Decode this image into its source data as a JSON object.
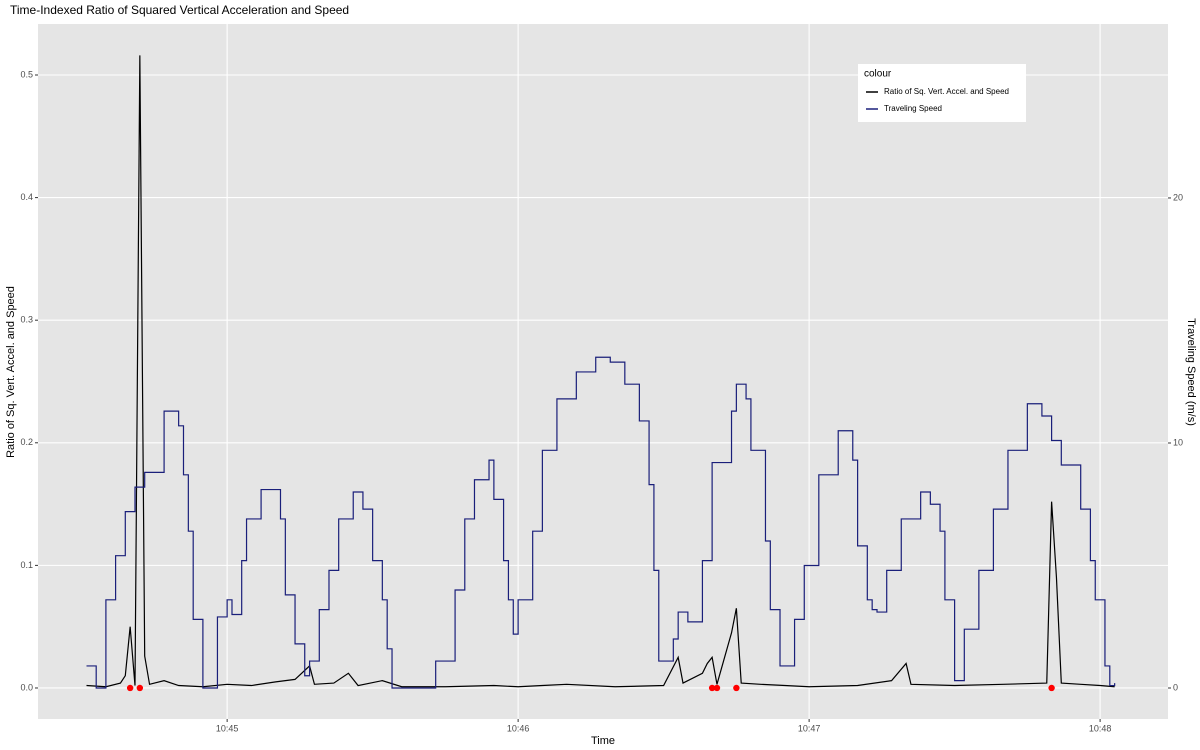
{
  "chart_data": {
    "type": "line",
    "title": "Time-Indexed Ratio of Squared Vertical Acceleration and Speed",
    "x_label": "Time",
    "y_label": "Ratio of Sq. Vert. Accel. and Speed",
    "y2_label": "Traveling Speed (m/s)",
    "legend_title": "colour",
    "legend_position": "top-right",
    "grid": true,
    "xlim": [
      "10:44:21",
      "10:48:14"
    ],
    "xticks": [
      {
        "value": "10:45:00",
        "label": "10:45"
      },
      {
        "value": "10:46:00",
        "label": "10:46"
      },
      {
        "value": "10:47:00",
        "label": "10:47"
      },
      {
        "value": "10:48:00",
        "label": "10:48"
      }
    ],
    "ylim": [
      -0.0253,
      0.5416
    ],
    "yticks": [
      {
        "value": 0,
        "label": "0.0"
      },
      0.1,
      0.2,
      0.3,
      0.4,
      0.5
    ],
    "y2lim": [
      -1.265,
      27.1
    ],
    "y2ticks": [
      0,
      10,
      20
    ],
    "series": [
      {
        "name": "Ratio of Sq. Vert. Accel. and Speed",
        "color": "#000000",
        "axis": "y",
        "step": false,
        "x": [
          "10:44:31",
          "10:44:35",
          "10:44:38",
          "10:44:39",
          "10:44:40",
          "10:44:41",
          "10:44:42",
          "10:44:43",
          "10:44:44",
          "10:44:47",
          "10:44:50",
          "10:44:55",
          "10:45:00",
          "10:45:05",
          "10:45:10",
          "10:45:14",
          "10:45:17",
          "10:45:18",
          "10:45:22",
          "10:45:25",
          "10:45:27",
          "10:45:32",
          "10:45:36",
          "10:45:45",
          "10:45:55",
          "10:46:00",
          "10:46:05",
          "10:46:10",
          "10:46:20",
          "10:46:30",
          "10:46:33",
          "10:46:34",
          "10:46:38",
          "10:46:39",
          "10:46:40",
          "10:46:41",
          "10:46:44",
          "10:46:45",
          "10:46:46",
          "10:46:50",
          "10:46:55",
          "10:47:00",
          "10:47:10",
          "10:47:17",
          "10:47:20",
          "10:47:21",
          "10:47:30",
          "10:47:40",
          "10:47:49",
          "10:47:50",
          "10:47:51",
          "10:47:52",
          "10:47:56",
          "10:48:00",
          "10:48:03"
        ],
        "values": [
          0.002,
          0.001,
          0.004,
          0.01,
          0.05,
          0.002,
          0.516,
          0.026,
          0.003,
          0.006,
          0.002,
          0.001,
          0.003,
          0.002,
          0.005,
          0.007,
          0.018,
          0.003,
          0.004,
          0.012,
          0.002,
          0.006,
          0.001,
          0.001,
          0.002,
          0.001,
          0.002,
          0.003,
          0.001,
          0.002,
          0.025,
          0.004,
          0.012,
          0.02,
          0.025,
          0.003,
          0.045,
          0.065,
          0.004,
          0.003,
          0.002,
          0.001,
          0.002,
          0.006,
          0.02,
          0.003,
          0.002,
          0.003,
          0.004,
          0.152,
          0.09,
          0.004,
          0.003,
          0.002,
          0.001
        ]
      },
      {
        "name": "Traveling Speed",
        "color": "#1a1f7a",
        "axis": "y2",
        "step": true,
        "x": [
          "10:44:31",
          "10:44:33",
          "10:44:35",
          "10:44:37",
          "10:44:39",
          "10:44:41",
          "10:44:43",
          "10:44:47",
          "10:44:49",
          "10:44:50",
          "10:44:51",
          "10:44:52",
          "10:44:53",
          "10:44:55",
          "10:44:56",
          "10:44:57",
          "10:44:58",
          "10:45:00",
          "10:45:01",
          "10:45:03",
          "10:45:04",
          "10:45:07",
          "10:45:09",
          "10:45:11",
          "10:45:12",
          "10:45:14",
          "10:45:16",
          "10:45:17",
          "10:45:19",
          "10:45:21",
          "10:45:23",
          "10:45:26",
          "10:45:28",
          "10:45:30",
          "10:45:32",
          "10:45:33",
          "10:45:34",
          "10:45:42",
          "10:45:43",
          "10:45:47",
          "10:45:49",
          "10:45:51",
          "10:45:54",
          "10:45:55",
          "10:45:57",
          "10:45:58",
          "10:45:59",
          "10:46:00",
          "10:46:03",
          "10:46:05",
          "10:46:08",
          "10:46:12",
          "10:46:16",
          "10:46:19",
          "10:46:22",
          "10:46:25",
          "10:46:27",
          "10:46:28",
          "10:46:29",
          "10:46:32",
          "10:46:33",
          "10:46:35",
          "10:46:38",
          "10:46:40",
          "10:46:44",
          "10:46:45",
          "10:46:47",
          "10:46:48",
          "10:46:51",
          "10:46:52",
          "10:46:54",
          "10:46:57",
          "10:46:59",
          "10:47:02",
          "10:47:06",
          "10:47:09",
          "10:47:10",
          "10:47:12",
          "10:47:13",
          "10:47:14",
          "10:47:16",
          "10:47:19",
          "10:47:23",
          "10:47:25",
          "10:47:27",
          "10:47:28",
          "10:47:30",
          "10:47:32",
          "10:47:35",
          "10:47:38",
          "10:47:41",
          "10:47:45",
          "10:47:48",
          "10:47:50",
          "10:47:52",
          "10:47:56",
          "10:47:58",
          "10:47:59",
          "10:48:01",
          "10:48:02",
          "10:48:03"
        ],
        "values": [
          0.9,
          0,
          3.6,
          5.4,
          7.2,
          8.2,
          8.8,
          11.3,
          11.3,
          10.7,
          8.7,
          6.4,
          2.8,
          0,
          0,
          0,
          2.9,
          3.6,
          3,
          5.2,
          6.9,
          8.1,
          8.1,
          6.9,
          3.8,
          1.8,
          0.5,
          1.1,
          3.2,
          4.8,
          6.9,
          8,
          7.3,
          5.2,
          3.6,
          1.6,
          0,
          0,
          1.1,
          4,
          6.9,
          8.5,
          9.3,
          7.7,
          5.2,
          3.6,
          2.2,
          3.6,
          6.4,
          9.7,
          11.8,
          12.9,
          13.5,
          13.3,
          12.4,
          10.9,
          8.3,
          4.8,
          1.1,
          2,
          3.1,
          2.7,
          5.2,
          9.2,
          11.3,
          12.4,
          11.8,
          9.7,
          6,
          3.2,
          0.9,
          2.8,
          5,
          8.7,
          10.5,
          9.3,
          5.8,
          3.6,
          3.2,
          3.1,
          4.8,
          6.9,
          8,
          7.5,
          6.4,
          3.6,
          0.3,
          2.4,
          4.8,
          7.3,
          9.7,
          11.6,
          11.1,
          10.1,
          9.1,
          7.3,
          5.2,
          3.6,
          0.9,
          0.1,
          0.2
        ]
      }
    ],
    "markers": {
      "color": "#ff0000",
      "axis": "y",
      "x": [
        "10:44:40",
        "10:44:42",
        "10:46:40",
        "10:46:41",
        "10:46:45",
        "10:47:50"
      ],
      "values": [
        0,
        0,
        0,
        0,
        0,
        0
      ]
    }
  }
}
